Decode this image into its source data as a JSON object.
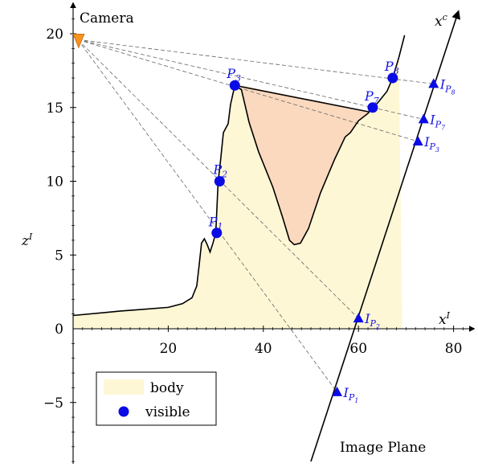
{
  "colors": {
    "body_fill": "#fdf7d5",
    "shaded_fill": "#fad9bf",
    "point_blue": "#0b0be6",
    "label_blue": "#1515e0",
    "camera_orange": "#f7941d",
    "line_black": "#000000",
    "ray_gray": "#666666"
  },
  "chart_data": {
    "type": "scatter",
    "xlabel": "x",
    "xlabel_sup": "I",
    "ylabel": "z",
    "ylabel_sup": "I",
    "x_ticks": [
      "20",
      "40",
      "60",
      "80"
    ],
    "y_ticks": [
      "20",
      "15",
      "10",
      "5",
      "0",
      "−5"
    ],
    "xlim": [
      0,
      80
    ],
    "ylim": [
      -9,
      21
    ],
    "camera": {
      "label": "Camera",
      "x": 1,
      "y": 19.6
    },
    "image_plane": {
      "label": "Image Plane",
      "axis_label": "x",
      "axis_sup": "c",
      "from": [
        50,
        -9
      ],
      "to": [
        81,
        21.5
      ]
    },
    "body_profile": [
      [
        0,
        0.9
      ],
      [
        10,
        1.2
      ],
      [
        14,
        1.3
      ],
      [
        20,
        1.45
      ],
      [
        23,
        1.7
      ],
      [
        25,
        2.1
      ],
      [
        26,
        2.9
      ],
      [
        26.5,
        4.3
      ],
      [
        27,
        5.8
      ],
      [
        27.6,
        6.1
      ],
      [
        28.2,
        5.7
      ],
      [
        28.8,
        5.2
      ],
      [
        29.4,
        5.8
      ],
      [
        30,
        6.5
      ],
      [
        30.5,
        10
      ],
      [
        31,
        11.4
      ],
      [
        31.6,
        13.3
      ],
      [
        32.6,
        13.9
      ],
      [
        33.1,
        15.2
      ],
      [
        34,
        16.5
      ],
      [
        35.4,
        16.2
      ],
      [
        37,
        14
      ],
      [
        39,
        12
      ],
      [
        42,
        9.6
      ],
      [
        44,
        7.6
      ],
      [
        45.5,
        6.0
      ],
      [
        46.5,
        5.7
      ],
      [
        47.8,
        5.8
      ],
      [
        49.5,
        6.8
      ],
      [
        52,
        9.2
      ],
      [
        55,
        11.5
      ],
      [
        57.2,
        13
      ],
      [
        58.3,
        13.3
      ],
      [
        60,
        14.1
      ],
      [
        62,
        14.6
      ],
      [
        63,
        15
      ],
      [
        64,
        15.3
      ],
      [
        66,
        16.1
      ],
      [
        67.2,
        17
      ],
      [
        68.5,
        18.4
      ],
      [
        69.7,
        19.9
      ]
    ],
    "body_fill_right_x": 69.2,
    "shaded_region": {
      "top_left": [
        35.4,
        16.5
      ],
      "top_right": [
        62.3,
        14.7
      ]
    },
    "visible_points": [
      {
        "label": "P",
        "sub": "1",
        "x": 30.2,
        "y": 6.5
      },
      {
        "label": "P",
        "sub": "2",
        "x": 30.8,
        "y": 10
      },
      {
        "label": "P",
        "sub": "3",
        "x": 34,
        "y": 16.5
      },
      {
        "label": "P",
        "sub": "7",
        "x": 63,
        "y": 15
      },
      {
        "label": "P",
        "sub": "8",
        "x": 67.2,
        "y": 17
      }
    ],
    "image_points": [
      {
        "label": "I",
        "sub": "P1",
        "x": 55.5,
        "y": -4.3
      },
      {
        "label": "I",
        "sub": "P2",
        "x": 60,
        "y": 0.7
      },
      {
        "label": "I",
        "sub": "P3",
        "x": 72.5,
        "y": 12.7
      },
      {
        "label": "I",
        "sub": "P7",
        "x": 73.7,
        "y": 14.2
      },
      {
        "label": "I",
        "sub": "P8",
        "x": 75.8,
        "y": 16.6
      }
    ],
    "legend": {
      "position": "bottom-left",
      "entries": [
        {
          "label": "body",
          "marker": "fill"
        },
        {
          "label": "visible",
          "marker": "dot"
        }
      ]
    }
  }
}
